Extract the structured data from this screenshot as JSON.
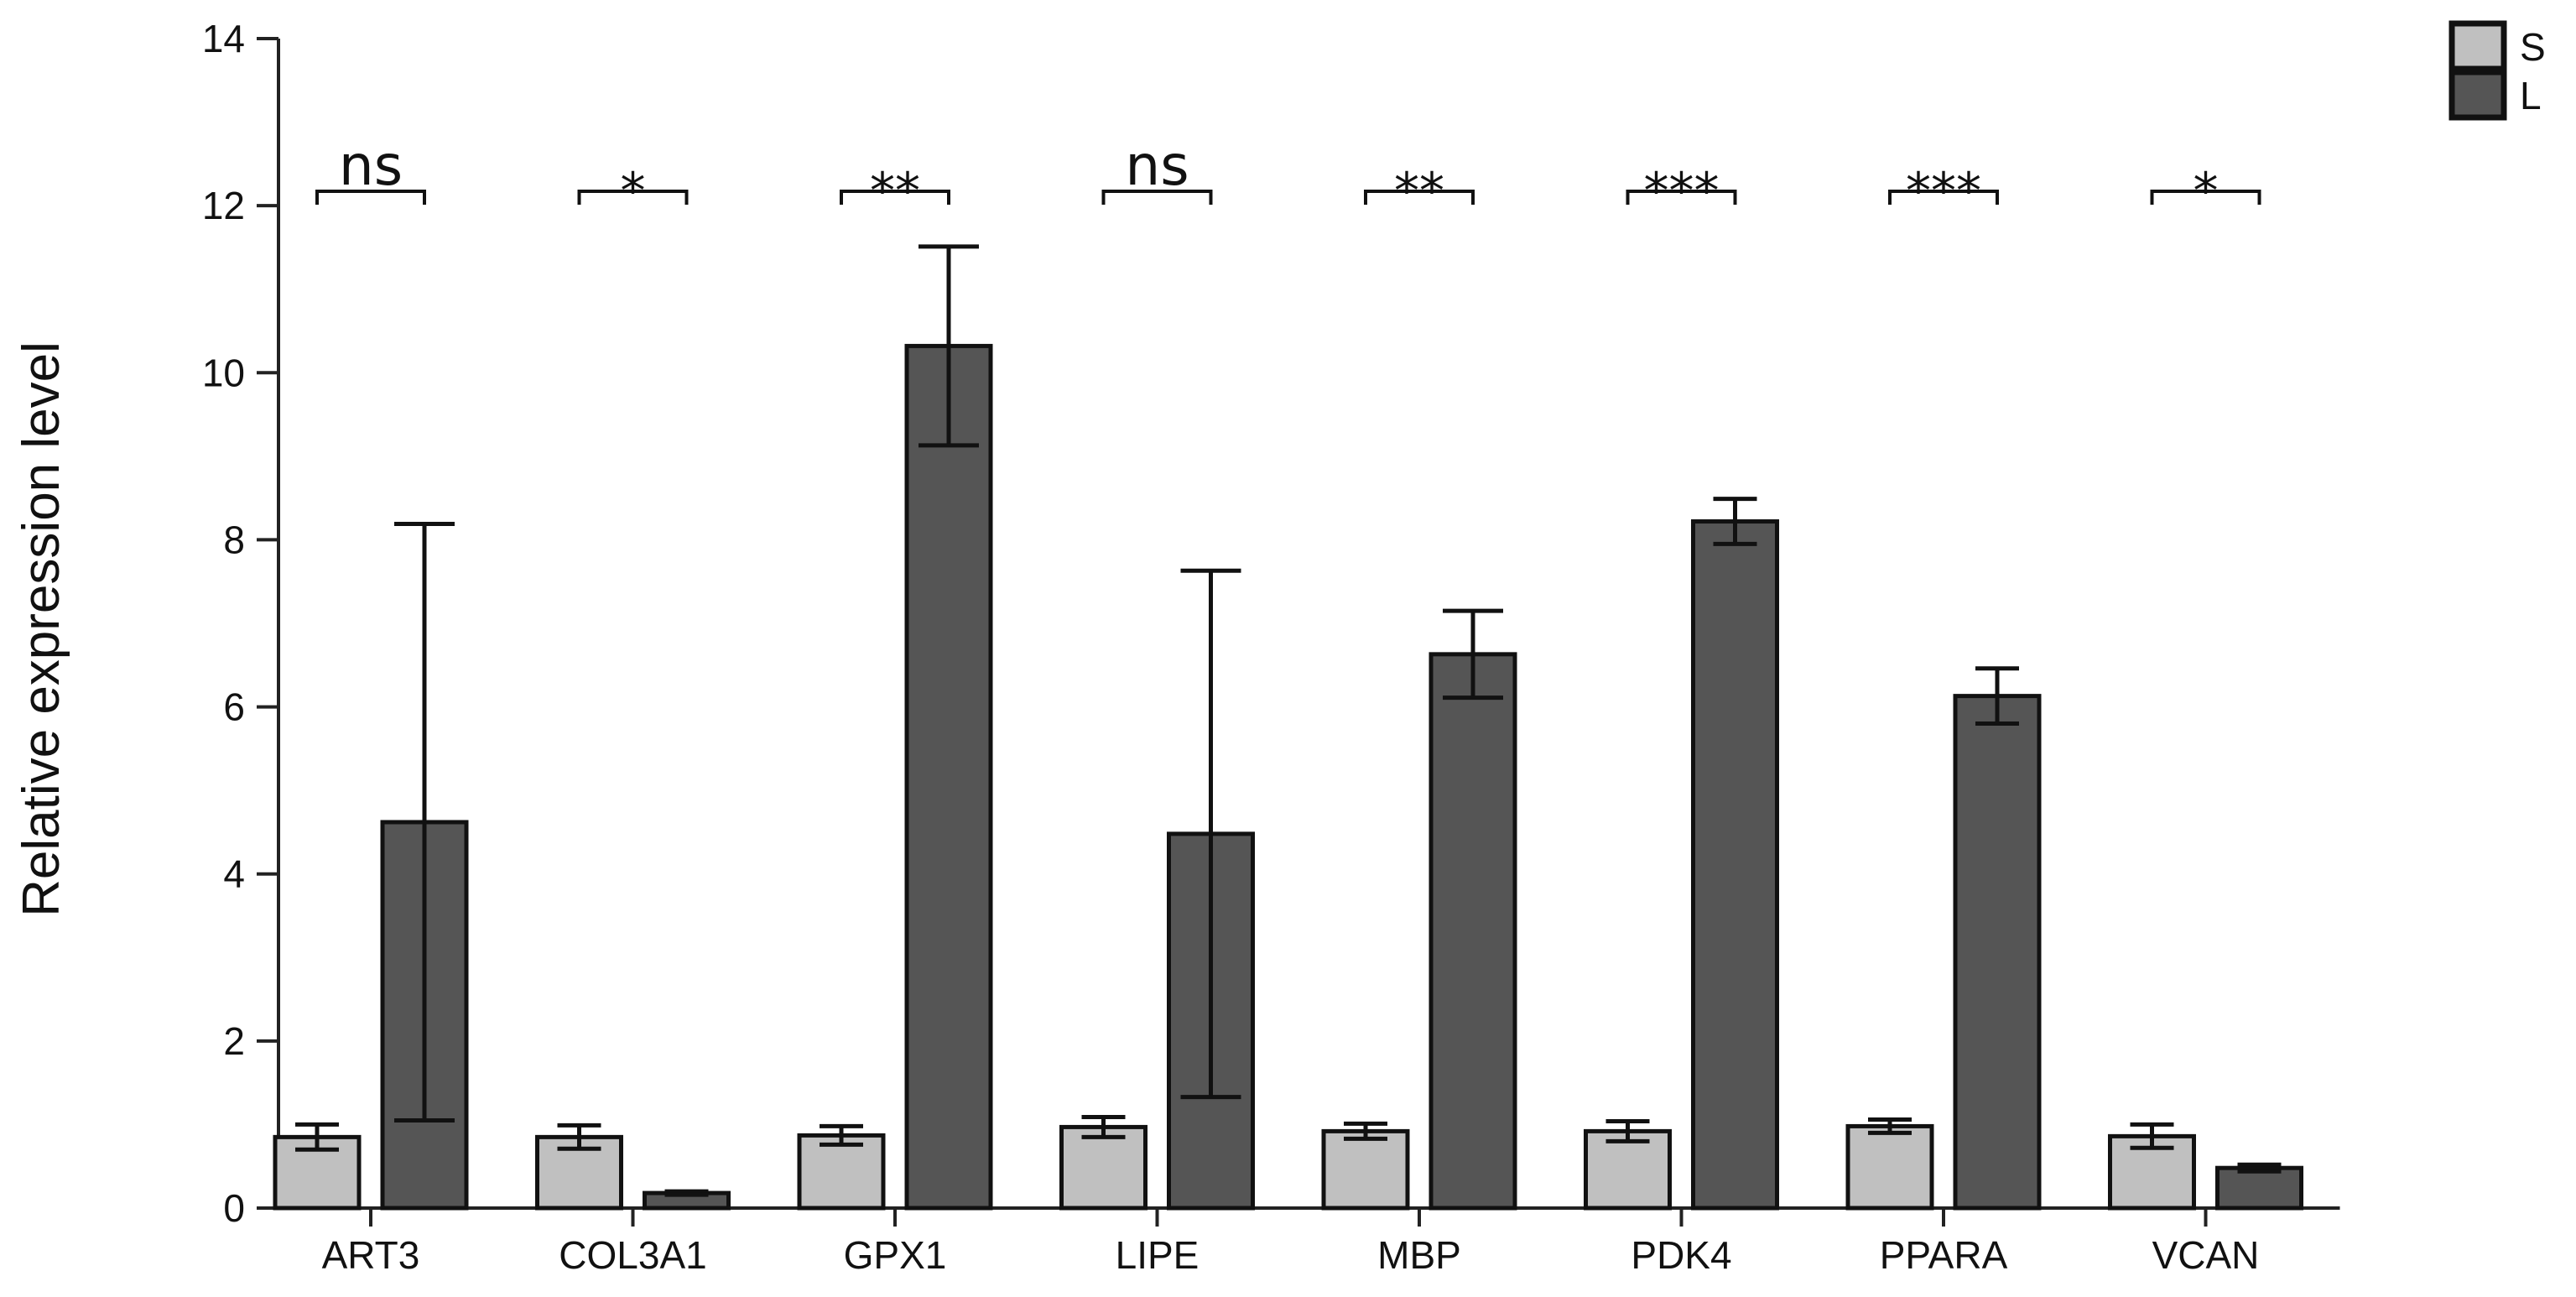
{
  "chart_data": {
    "type": "bar",
    "title": "",
    "xlabel": "",
    "ylabel": "Relative expression level",
    "ylim": [
      0,
      14
    ],
    "yticks": [
      "0",
      "2",
      "4",
      "6",
      "8",
      "10",
      "12",
      "14"
    ],
    "grid": false,
    "legend_position": "top-right",
    "categories": [
      "ART3",
      "COL3A1",
      "GPX1",
      "LIPE",
      "MBP",
      "PDK4",
      "PPARA",
      "VCAN"
    ],
    "series": [
      {
        "name": "S",
        "color": "#c0c0c0",
        "values": [
          0.85,
          0.85,
          0.87,
          0.97,
          0.92,
          0.92,
          0.98,
          0.86
        ],
        "errors": [
          0.15,
          0.14,
          0.11,
          0.12,
          0.09,
          0.12,
          0.08,
          0.14
        ]
      },
      {
        "name": "L",
        "color": "#555555",
        "values": [
          4.62,
          0.18,
          10.32,
          4.48,
          6.63,
          8.22,
          6.13,
          0.48
        ],
        "errors": [
          3.57,
          0.02,
          1.19,
          3.15,
          0.52,
          0.27,
          0.33,
          0.04
        ]
      }
    ],
    "significance": [
      "ns",
      "*",
      "**",
      "ns",
      "**",
      "***",
      "***",
      "*"
    ]
  }
}
